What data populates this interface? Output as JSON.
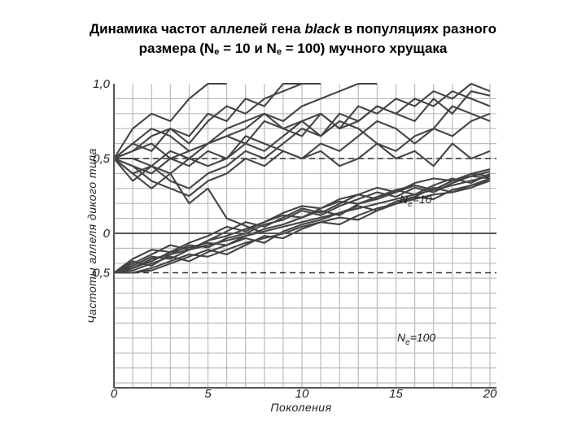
{
  "title": {
    "line1_prefix": "Динамика частот аллелей гена ",
    "line1_gene": "black",
    "line1_suffix": " в популяциях разного",
    "line2_prefix": "размера (N",
    "line2_sub1": "e",
    "line2_mid": " = 10 и N",
    "line2_sub2": "e",
    "line2_suffix": " = 100) мучного хрущака"
  },
  "chart_data": {
    "type": "line",
    "xlabel": "Поколения",
    "ylabel": "Частоты аллеля дикого типа",
    "x_ticks": [
      "0",
      "5",
      "10",
      "15",
      "20"
    ],
    "xlim": [
      0,
      21
    ],
    "grid": true,
    "panels": [
      {
        "label": "Ne = 10",
        "label_base": "N",
        "label_sub": "e",
        "label_value": "=10",
        "ylim": [
          0,
          1
        ],
        "y_ticks": [
          "0",
          "0,5",
          "1,0"
        ],
        "reference_line": 0.5,
        "series": [
          {
            "values": [
              0.5,
              0.6,
              0.55,
              0.7,
              0.65,
              0.8,
              0.75,
              0.9,
              0.85,
              1.0,
              1.0
            ]
          },
          {
            "values": [
              0.5,
              0.7,
              0.8,
              0.75,
              0.9,
              1.0,
              1.0
            ]
          },
          {
            "values": [
              0.5,
              0.4,
              0.3,
              0.4,
              0.2,
              0.3,
              0.1,
              0.05,
              0.0,
              0.0
            ]
          },
          {
            "values": [
              0.5,
              0.55,
              0.65,
              0.7,
              0.6,
              0.75,
              0.85,
              0.8,
              0.9,
              0.95,
              1.0,
              1.0
            ]
          },
          {
            "values": [
              0.5,
              0.45,
              0.4,
              0.5,
              0.55,
              0.6,
              0.65,
              0.7,
              0.8,
              0.75,
              0.85,
              0.9,
              0.95,
              1.0,
              1.0
            ]
          },
          {
            "values": [
              0.5,
              0.6,
              0.7,
              0.65,
              0.55,
              0.6,
              0.7,
              0.75,
              0.8,
              0.7,
              0.75,
              0.65,
              0.8,
              0.75,
              0.85,
              0.8,
              0.9,
              0.85,
              0.95,
              0.9,
              0.85
            ]
          },
          {
            "values": [
              0.5,
              0.5,
              0.45,
              0.55,
              0.5,
              0.6,
              0.65,
              0.6,
              0.75,
              0.7,
              0.65,
              0.8,
              0.7,
              0.75,
              0.85,
              0.8,
              0.75,
              0.9,
              0.8,
              0.95,
              0.92
            ]
          },
          {
            "values": [
              0.5,
              0.4,
              0.45,
              0.35,
              0.3,
              0.4,
              0.45,
              0.55,
              0.5,
              0.6,
              0.7,
              0.65,
              0.75,
              0.7,
              0.6,
              0.55,
              0.65,
              0.7,
              0.85,
              0.8,
              0.75
            ]
          },
          {
            "values": [
              0.5,
              0.55,
              0.6,
              0.5,
              0.45,
              0.55,
              0.5,
              0.65,
              0.6,
              0.55,
              0.5,
              0.55,
              0.45,
              0.5,
              0.6,
              0.5,
              0.55,
              0.45,
              0.6,
              0.5,
              0.55
            ]
          },
          {
            "values": [
              0.5,
              0.35,
              0.45,
              0.4,
              0.5,
              0.45,
              0.5,
              0.6,
              0.55,
              0.65,
              0.75,
              0.8,
              0.7,
              0.85,
              0.8,
              0.9,
              0.85,
              0.95,
              0.9,
              1.0,
              0.95
            ]
          },
          {
            "values": [
              0.5,
              0.45,
              0.35,
              0.3,
              0.25,
              0.35,
              0.4,
              0.5,
              0.45,
              0.55,
              0.5,
              0.6,
              0.55,
              0.65,
              0.75,
              0.7,
              0.6,
              0.7,
              0.65,
              0.75,
              0.8
            ]
          }
        ]
      },
      {
        "label": "Ne = 100",
        "label_base": "N",
        "label_sub": "e",
        "label_value": "=100",
        "ylim": [
          0,
          1
        ],
        "y_ticks": [
          "0,5"
        ],
        "reference_line": 0.5,
        "series": [
          {
            "values": [
              0.5,
              0.52,
              0.56,
              0.58,
              0.6,
              0.62,
              0.64,
              0.66,
              0.68,
              0.7,
              0.72,
              0.74,
              0.76,
              0.78,
              0.8,
              0.82,
              0.84,
              0.86,
              0.88,
              0.9,
              0.92
            ]
          },
          {
            "values": [
              0.5,
              0.54,
              0.58,
              0.62,
              0.6,
              0.64,
              0.68,
              0.72,
              0.7,
              0.74,
              0.78,
              0.76,
              0.8,
              0.84,
              0.82,
              0.86,
              0.88,
              0.86,
              0.9,
              0.92,
              0.94
            ]
          },
          {
            "values": [
              0.5,
              0.5,
              0.52,
              0.55,
              0.58,
              0.57,
              0.6,
              0.63,
              0.65,
              0.67,
              0.7,
              0.72,
              0.71,
              0.75,
              0.78,
              0.8,
              0.82,
              0.84,
              0.85,
              0.87,
              0.9
            ]
          },
          {
            "values": [
              0.5,
              0.53,
              0.57,
              0.56,
              0.6,
              0.64,
              0.66,
              0.69,
              0.72,
              0.75,
              0.74,
              0.78,
              0.81,
              0.8,
              0.83,
              0.86,
              0.84,
              0.88,
              0.91,
              0.89,
              0.93
            ]
          },
          {
            "values": [
              0.5,
              0.55,
              0.53,
              0.58,
              0.62,
              0.61,
              0.65,
              0.67,
              0.71,
              0.73,
              0.77,
              0.75,
              0.79,
              0.82,
              0.85,
              0.83,
              0.87,
              0.85,
              0.89,
              0.92,
              0.91
            ]
          },
          {
            "values": [
              0.5,
              0.51,
              0.54,
              0.57,
              0.55,
              0.59,
              0.62,
              0.65,
              0.63,
              0.68,
              0.71,
              0.73,
              0.76,
              0.79,
              0.77,
              0.81,
              0.83,
              0.87,
              0.85,
              0.88,
              0.9
            ]
          },
          {
            "values": [
              0.5,
              0.52,
              0.55,
              0.59,
              0.61,
              0.63,
              0.62,
              0.66,
              0.69,
              0.71,
              0.74,
              0.77,
              0.75,
              0.8,
              0.82,
              0.85,
              0.88,
              0.86,
              0.9,
              0.93,
              0.92
            ]
          },
          {
            "values": [
              0.5,
              0.56,
              0.6,
              0.59,
              0.63,
              0.66,
              0.7,
              0.68,
              0.72,
              0.76,
              0.79,
              0.78,
              0.82,
              0.84,
              0.87,
              0.85,
              0.89,
              0.91,
              0.9,
              0.93,
              0.95
            ]
          },
          {
            "values": [
              0.5,
              0.5,
              0.51,
              0.54,
              0.57,
              0.6,
              0.58,
              0.62,
              0.66,
              0.65,
              0.69,
              0.72,
              0.74,
              0.73,
              0.77,
              0.8,
              0.83,
              0.82,
              0.86,
              0.88,
              0.91
            ]
          }
        ]
      }
    ]
  }
}
